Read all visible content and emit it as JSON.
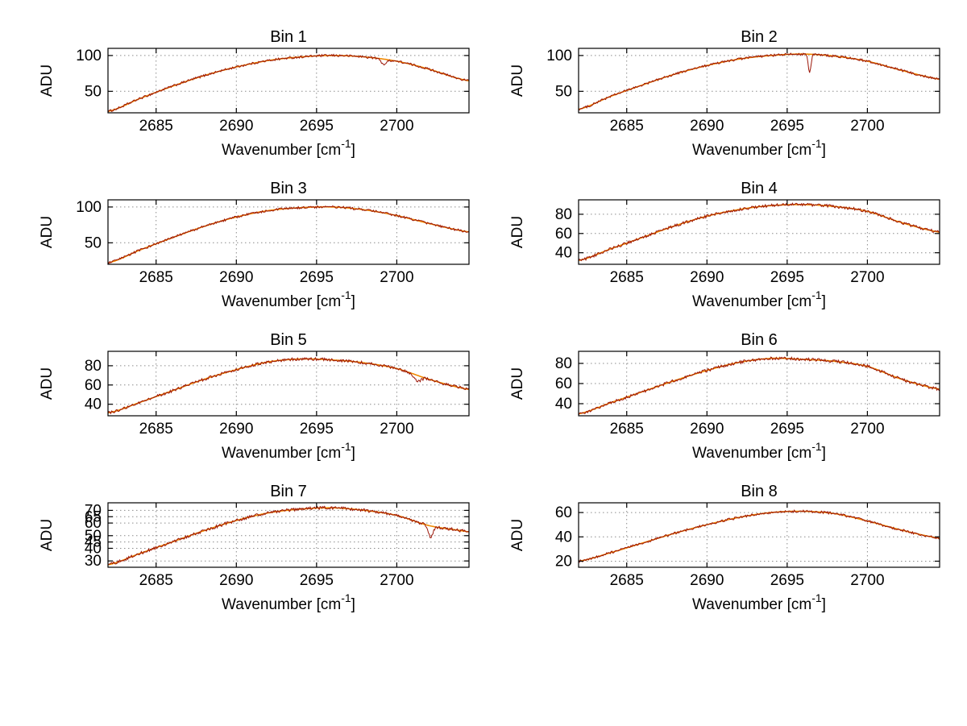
{
  "figure": {
    "background": "#ffffff"
  },
  "labels": {
    "ylabel": "ADU",
    "xlabel_prefix": "Wavenumber [cm",
    "xlabel_sup": "-1",
    "xlabel_suffix": "]"
  },
  "style": {
    "noisy_color": "#9b1507",
    "smooth_color": "#f08800",
    "grid_color": "#8c8c8c",
    "axis_color": "#000000"
  },
  "chart_data": [
    {
      "type": "line",
      "title": "Bin 1",
      "ylabel": "ADU",
      "xlabel": "Wavenumber [cm-1]",
      "x_ticks": [
        2685,
        2690,
        2695,
        2700
      ],
      "y_ticks": [
        50,
        100
      ],
      "xlim": [
        2682,
        2704.5
      ],
      "ylim": [
        20,
        110
      ],
      "envelope": {
        "x": [
          2682,
          2684,
          2686,
          2688,
          2690,
          2692,
          2694,
          2696,
          2698,
          2700,
          2702,
          2704,
          2706
        ],
        "y": [
          22,
          40,
          57,
          72,
          84,
          93,
          98,
          100,
          98,
          92,
          81,
          67,
          60
        ]
      },
      "noise_amp": 1.6,
      "dips": [
        {
          "x": 2699.2,
          "depth": 7,
          "width": 0.25
        }
      ]
    },
    {
      "type": "line",
      "title": "Bin 2",
      "ylabel": "ADU",
      "xlabel": "Wavenumber [cm-1]",
      "x_ticks": [
        2685,
        2690,
        2695,
        2700
      ],
      "y_ticks": [
        50,
        100
      ],
      "xlim": [
        2682,
        2704.5
      ],
      "ylim": [
        20,
        110
      ],
      "envelope": {
        "x": [
          2682,
          2684,
          2686,
          2688,
          2690,
          2692,
          2694,
          2696,
          2698,
          2700,
          2702,
          2704,
          2706
        ],
        "y": [
          25,
          43,
          59,
          74,
          86,
          95,
          100,
          102,
          99,
          92,
          80,
          69,
          62
        ]
      },
      "noise_amp": 1.6,
      "dips": [
        {
          "x": 2696.4,
          "depth": 26,
          "width": 0.12
        }
      ]
    },
    {
      "type": "line",
      "title": "Bin 3",
      "ylabel": "ADU",
      "xlabel": "Wavenumber [cm-1]",
      "x_ticks": [
        2685,
        2690,
        2695,
        2700
      ],
      "y_ticks": [
        50,
        100
      ],
      "xlim": [
        2682,
        2704.5
      ],
      "ylim": [
        20,
        110
      ],
      "envelope": {
        "x": [
          2682,
          2684,
          2686,
          2688,
          2690,
          2692,
          2694,
          2696,
          2698,
          2700,
          2702,
          2704,
          2706
        ],
        "y": [
          22,
          40,
          57,
          73,
          86,
          95,
          99,
          100,
          96,
          88,
          77,
          67,
          61
        ]
      },
      "noise_amp": 1.6,
      "dips": []
    },
    {
      "type": "line",
      "title": "Bin 4",
      "ylabel": "ADU",
      "xlabel": "Wavenumber [cm-1]",
      "x_ticks": [
        2685,
        2690,
        2695,
        2700
      ],
      "y_ticks": [
        40,
        60,
        80
      ],
      "xlim": [
        2682,
        2704.5
      ],
      "ylim": [
        28,
        95
      ],
      "envelope": {
        "x": [
          2682,
          2684,
          2686,
          2688,
          2690,
          2692,
          2694,
          2696,
          2698,
          2700,
          2702,
          2704,
          2706
        ],
        "y": [
          32,
          44,
          56,
          68,
          78,
          85,
          89,
          90,
          88,
          83,
          72,
          63,
          58
        ]
      },
      "noise_amp": 1.5,
      "dips": []
    },
    {
      "type": "line",
      "title": "Bin 5",
      "ylabel": "ADU",
      "xlabel": "Wavenumber [cm-1]",
      "x_ticks": [
        2685,
        2690,
        2695,
        2700
      ],
      "y_ticks": [
        40,
        60,
        80
      ],
      "xlim": [
        2682,
        2704.5
      ],
      "ylim": [
        28,
        95
      ],
      "envelope": {
        "x": [
          2682,
          2684,
          2686,
          2688,
          2690,
          2692,
          2694,
          2696,
          2698,
          2700,
          2702,
          2704,
          2706
        ],
        "y": [
          31,
          42,
          54,
          66,
          76,
          84,
          87,
          86,
          83,
          77,
          66,
          57,
          52
        ]
      },
      "noise_amp": 1.5,
      "dips": [
        {
          "x": 2701.3,
          "depth": 6,
          "width": 0.3
        }
      ]
    },
    {
      "type": "line",
      "title": "Bin 6",
      "ylabel": "ADU",
      "xlabel": "Wavenumber [cm-1]",
      "x_ticks": [
        2685,
        2690,
        2695,
        2700
      ],
      "y_ticks": [
        40,
        60,
        80
      ],
      "xlim": [
        2682,
        2704.5
      ],
      "ylim": [
        28,
        92
      ],
      "envelope": {
        "x": [
          2682,
          2684,
          2686,
          2688,
          2690,
          2692,
          2694,
          2696,
          2698,
          2700,
          2702,
          2704,
          2706
        ],
        "y": [
          30,
          41,
          52,
          63,
          73,
          81,
          85,
          84,
          82,
          77,
          65,
          56,
          51
        ]
      },
      "noise_amp": 1.5,
      "dips": []
    },
    {
      "type": "line",
      "title": "Bin 7",
      "ylabel": "ADU",
      "xlabel": "Wavenumber [cm-1]",
      "x_ticks": [
        2685,
        2690,
        2695,
        2700
      ],
      "y_ticks": [
        30,
        40,
        45,
        50,
        60,
        65,
        70
      ],
      "xlim": [
        2682,
        2704.5
      ],
      "ylim": [
        25,
        76
      ],
      "envelope": {
        "x": [
          2682,
          2684,
          2686,
          2688,
          2690,
          2692,
          2694,
          2696,
          2698,
          2700,
          2702,
          2704,
          2706
        ],
        "y": [
          27,
          36,
          45,
          54,
          62,
          68,
          71,
          72,
          70,
          66,
          58,
          54,
          50
        ]
      },
      "noise_amp": 1.2,
      "dips": [
        {
          "x": 2702.1,
          "depth": 9,
          "width": 0.2
        }
      ]
    },
    {
      "type": "line",
      "title": "Bin 8",
      "ylabel": "ADU",
      "xlabel": "Wavenumber [cm-1]",
      "x_ticks": [
        2685,
        2690,
        2695,
        2700
      ],
      "y_ticks": [
        20,
        40,
        60
      ],
      "xlim": [
        2682,
        2704.5
      ],
      "ylim": [
        15,
        68
      ],
      "envelope": {
        "x": [
          2682,
          2684,
          2686,
          2688,
          2690,
          2692,
          2694,
          2696,
          2698,
          2700,
          2702,
          2704,
          2706
        ],
        "y": [
          20,
          27,
          35,
          43,
          50,
          56,
          60,
          61,
          59,
          53,
          46,
          40,
          36
        ]
      },
      "noise_amp": 1.0,
      "dips": []
    }
  ]
}
